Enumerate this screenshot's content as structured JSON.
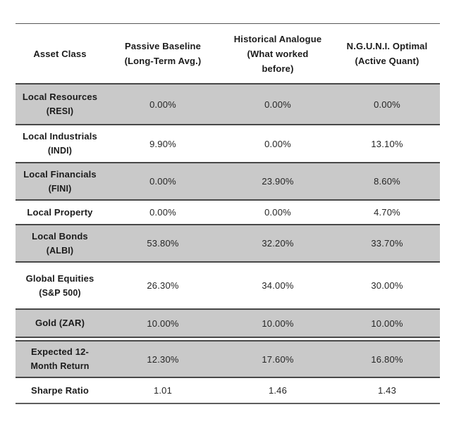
{
  "colors": {
    "row_shade": "#c9c9c9",
    "separator_line": "#484848",
    "text": "#1b1b1b",
    "background": "#ffffff"
  },
  "table": {
    "header": {
      "columns": [
        {
          "lines": [
            "Asset Class"
          ]
        },
        {
          "lines": [
            "Passive Baseline",
            "(Long-Term Avg.)"
          ]
        },
        {
          "lines": [
            "Historical Analogue",
            "(What worked",
            "before)"
          ]
        },
        {
          "lines": [
            "N.G.U.N.I. Optimal",
            "(Active Quant)"
          ]
        }
      ]
    },
    "rows": [
      {
        "line1": "Local Resources",
        "line2": "(RESI)",
        "values": [
          "0.00%",
          "0.00%",
          "0.00%"
        ]
      },
      {
        "line1": "Local Industrials",
        "line2": "(INDI)",
        "values": [
          "9.90%",
          "0.00%",
          "13.10%"
        ]
      },
      {
        "line1": "Local Financials",
        "line2": "(FINI)",
        "values": [
          "0.00%",
          "23.90%",
          "8.60%"
        ]
      },
      {
        "line1": "Local Property",
        "line2": "",
        "values": [
          "0.00%",
          "0.00%",
          "4.70%"
        ]
      },
      {
        "line1": "Local Bonds",
        "line2": "(ALBI)",
        "values": [
          "53.80%",
          "32.20%",
          "33.70%"
        ]
      },
      {
        "line1": "Global Equities",
        "line2": "(S&P 500)",
        "values": [
          "26.30%",
          "34.00%",
          "30.00%"
        ]
      },
      {
        "line1": "Gold (ZAR)",
        "line2": "",
        "values": [
          "10.00%",
          "10.00%",
          "10.00%"
        ]
      },
      {
        "line1": "Expected 12-",
        "line2": "Month Return",
        "values": [
          "12.30%",
          "17.60%",
          "16.80%"
        ]
      },
      {
        "line1": "Sharpe Ratio",
        "line2": "",
        "values": [
          "1.01",
          "1.46",
          "1.43"
        ]
      }
    ]
  },
  "chart_data": {
    "type": "table",
    "columns": [
      "Asset Class",
      "Passive Baseline (Long-Term Avg.)",
      "Historical Analogue (What worked before)",
      "N.G.U.N.I. Optimal (Active Quant)"
    ],
    "rows": [
      [
        "Local Resources (RESI)",
        "0.00%",
        "0.00%",
        "0.00%"
      ],
      [
        "Local Industrials (INDI)",
        "9.90%",
        "0.00%",
        "13.10%"
      ],
      [
        "Local Financials (FINI)",
        "0.00%",
        "23.90%",
        "8.60%"
      ],
      [
        "Local Property",
        "0.00%",
        "0.00%",
        "4.70%"
      ],
      [
        "Local Bonds (ALBI)",
        "53.80%",
        "32.20%",
        "33.70%"
      ],
      [
        "Global Equities (S&P 500)",
        "26.30%",
        "34.00%",
        "30.00%"
      ],
      [
        "Gold (ZAR)",
        "10.00%",
        "10.00%",
        "10.00%"
      ],
      [
        "Expected 12-Month Return",
        "12.30%",
        "17.60%",
        "16.80%"
      ],
      [
        "Sharpe Ratio",
        "1.01",
        "1.46",
        "1.43"
      ]
    ],
    "shaded_row_indices": [
      0,
      2,
      4,
      6,
      7
    ],
    "section_break_after_row": 6
  }
}
